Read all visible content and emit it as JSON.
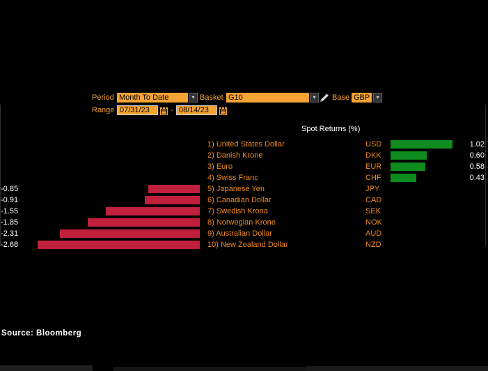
{
  "controls": {
    "period": {
      "label": "Period",
      "value": "Month To Date"
    },
    "basket": {
      "label": "Basket",
      "value": "G10"
    },
    "base": {
      "label": "Base",
      "value": "GBP"
    },
    "range": {
      "label": "Range",
      "start": "07/31/23",
      "separator": "-",
      "end": "08/14/23"
    }
  },
  "glyphs": {
    "dropdown_arrow": "▾"
  },
  "chart_data": {
    "type": "bar",
    "orientation": "horizontal",
    "title": "Spot Returns (%)",
    "categories": [
      "United States Dollar",
      "Danish Krone",
      "Euro",
      "Swiss Franc",
      "Japanese Yen",
      "Canadian Dollar",
      "Swedish Krona",
      "Norwegian Krone",
      "Australian Dollar",
      "New Zealand Dollar"
    ],
    "codes": [
      "USD",
      "DKK",
      "EUR",
      "CHF",
      "JPY",
      "CAD",
      "SEK",
      "NOK",
      "AUD",
      "NZD"
    ],
    "values": [
      1.02,
      0.6,
      0.58,
      0.43,
      -0.85,
      -0.91,
      -1.55,
      -1.85,
      -2.31,
      -2.68
    ],
    "row_labels": [
      "1) United States Dollar",
      "2) Danish Krone",
      "3) Euro",
      "4) Swiss Franc",
      "5) Japanese Yen",
      "6) Canadian Dollar",
      "7) Swedish Krona",
      "8) Norwegian Krone",
      "9) Australian Dollar",
      "10) New Zealand Dollar"
    ],
    "value_labels": [
      "1.02",
      "0.60",
      "0.58",
      "0.43",
      "-0.85",
      "-0.91",
      "-1.55",
      "-1.85",
      "-2.31",
      "-2.68"
    ],
    "positive_color": "#0E8C1E",
    "negative_color": "#C1203C",
    "grid": false,
    "legend": false
  },
  "source": "Source: Bloomberg",
  "colors": {
    "background": "#000000",
    "amber": "#F5A333",
    "row_label_orange": "#EE8A1E",
    "positive_green": "#0E8C1E",
    "negative_red": "#C1203C",
    "value_white": "#FFFFFF"
  }
}
